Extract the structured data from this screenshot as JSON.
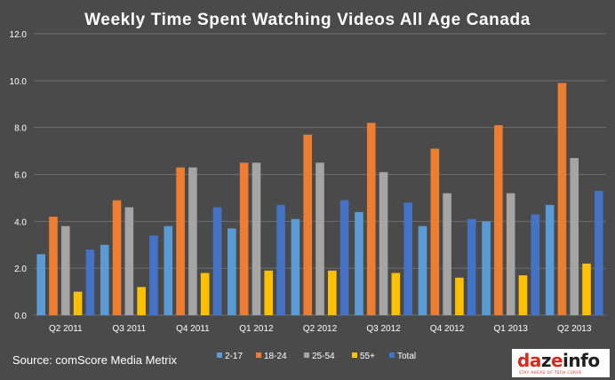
{
  "chart_data": {
    "type": "bar",
    "title": "Weekly Time Spent Watching Videos All Age Canada",
    "xlabel": "",
    "ylabel": "",
    "ylim": [
      0,
      12
    ],
    "yticks": [
      "0.0",
      "2.0",
      "4.0",
      "6.0",
      "8.0",
      "10.0",
      "12.0"
    ],
    "grid": true,
    "legend_position": "bottom",
    "categories": [
      "Q2 2011",
      "Q3 2011",
      "Q4 2011",
      "Q1 2012",
      "Q2 2012",
      "Q3 2012",
      "Q4 2012",
      "Q1 2013",
      "Q2 2013"
    ],
    "series": [
      {
        "name": "2-17",
        "color": "#5b9bd5",
        "values": [
          2.6,
          3.0,
          3.8,
          3.7,
          4.1,
          4.4,
          3.8,
          4.0,
          4.7
        ]
      },
      {
        "name": "18-24",
        "color": "#ed7d31",
        "values": [
          4.2,
          4.9,
          6.3,
          6.5,
          7.7,
          8.2,
          7.1,
          8.1,
          9.9
        ]
      },
      {
        "name": "25-54",
        "color": "#a5a5a5",
        "values": [
          3.8,
          4.6,
          6.3,
          6.5,
          6.5,
          6.1,
          5.2,
          5.2,
          6.7
        ]
      },
      {
        "name": "55+",
        "color": "#ffc000",
        "values": [
          1.0,
          1.2,
          1.8,
          1.9,
          1.9,
          1.8,
          1.6,
          1.7,
          2.2
        ]
      },
      {
        "name": "Total",
        "color": "#4472c4",
        "values": [
          2.8,
          3.4,
          4.6,
          4.7,
          4.9,
          4.8,
          4.1,
          4.3,
          5.3
        ]
      }
    ]
  },
  "footer": {
    "source": "Source: comScore Media Metrix"
  },
  "logo": {
    "text": "dazeinfo",
    "tagline": "STAY AHEAD OF TECH CURVE"
  }
}
